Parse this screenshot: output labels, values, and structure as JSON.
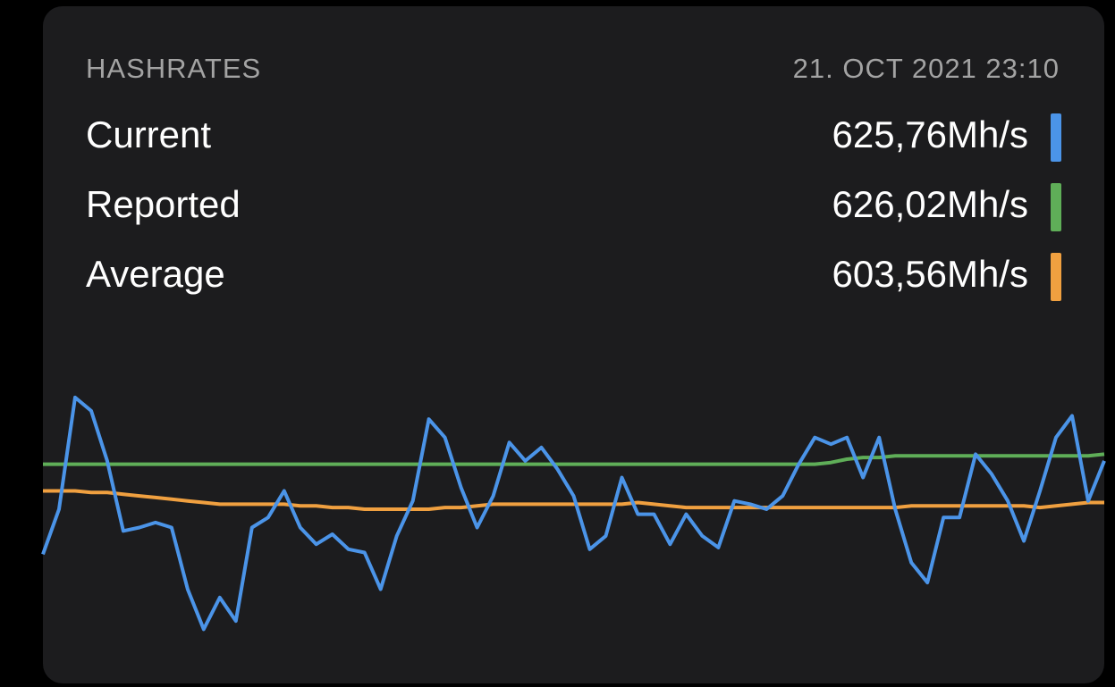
{
  "header": {
    "title": "HASHRATES",
    "date": "21. OCT 2021 23:10"
  },
  "chart_data": {
    "type": "line",
    "ylim": [
      520,
      670
    ],
    "series": [
      {
        "name": "Current",
        "reading": "625,76Mh/s",
        "color": "#4b94e8",
        "values": [
          568,
          595,
          662,
          654,
          624,
          582,
          584,
          587,
          584,
          547,
          523,
          542,
          528,
          584,
          590,
          606,
          584,
          574,
          580,
          571,
          569,
          547,
          579,
          600,
          649,
          638,
          608,
          584,
          603,
          635,
          624,
          632,
          619,
          603,
          571,
          579,
          614,
          592,
          592,
          574,
          592,
          579,
          572,
          600,
          598,
          595,
          603,
          622,
          638,
          634,
          638,
          614,
          638,
          595,
          563,
          551,
          590,
          590,
          628,
          616,
          600,
          576,
          606,
          638,
          651,
          600,
          624
        ]
      },
      {
        "name": "Reported",
        "reading": "626,02Mh/s",
        "color": "#5fae58",
        "values": [
          622,
          622,
          622,
          622,
          622,
          622,
          622,
          622,
          622,
          622,
          622,
          622,
          622,
          622,
          622,
          622,
          622,
          622,
          622,
          622,
          622,
          622,
          622,
          622,
          622,
          622,
          622,
          622,
          622,
          622,
          622,
          622,
          622,
          622,
          622,
          622,
          622,
          622,
          622,
          622,
          622,
          622,
          622,
          622,
          622,
          622,
          622,
          622,
          622,
          623,
          625,
          626,
          626,
          627,
          627,
          627,
          627,
          627,
          627,
          627,
          627,
          627,
          627,
          627,
          627,
          627,
          628
        ]
      },
      {
        "name": "Average",
        "reading": "603,56Mh/s",
        "color": "#f0a040",
        "values": [
          606,
          606,
          606,
          605,
          605,
          604,
          603,
          602,
          601,
          600,
          599,
          598,
          598,
          598,
          598,
          598,
          597,
          597,
          596,
          596,
          595,
          595,
          595,
          595,
          595,
          596,
          596,
          597,
          598,
          598,
          598,
          598,
          598,
          598,
          598,
          598,
          598,
          599,
          598,
          597,
          596,
          596,
          596,
          596,
          596,
          596,
          596,
          596,
          596,
          596,
          596,
          596,
          596,
          596,
          597,
          597,
          597,
          597,
          597,
          597,
          597,
          597,
          596,
          597,
          598,
          599,
          599
        ]
      }
    ]
  }
}
